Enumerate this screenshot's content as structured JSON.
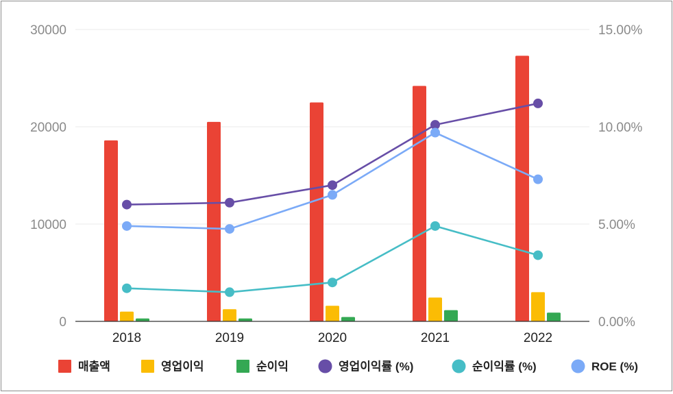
{
  "chart_data": {
    "type": "bar",
    "categories": [
      "2018",
      "2019",
      "2020",
      "2021",
      "2022"
    ],
    "left_axis": {
      "ylim": [
        0,
        30000
      ],
      "ticks": [
        "30000",
        "20000",
        "10000",
        "0"
      ],
      "tick_values": [
        30000,
        20000,
        10000,
        0
      ]
    },
    "right_axis": {
      "ylim": [
        0,
        15
      ],
      "ticks": [
        "15.00%",
        "10.00%",
        "5.00%",
        "0.00%"
      ],
      "tick_values": [
        15,
        10,
        5,
        0
      ]
    },
    "grid": true,
    "legend_position": "bottom",
    "bar_series": [
      {
        "name": "매출액",
        "color": "#ea4335",
        "values": [
          18600,
          20500,
          22500,
          24200,
          27300
        ]
      },
      {
        "name": "영업이익",
        "color": "#fbbc04",
        "values": [
          1000,
          1250,
          1600,
          2450,
          3000
        ]
      },
      {
        "name": "순이익",
        "color": "#34a853",
        "values": [
          300,
          300,
          450,
          1150,
          900
        ]
      }
    ],
    "line_series": [
      {
        "name": "영업이익률 (%)",
        "color": "#674ea7",
        "values": [
          6.0,
          6.1,
          7.0,
          10.1,
          11.2
        ]
      },
      {
        "name": "순이익률 (%)",
        "color": "#46bdc6",
        "values": [
          1.7,
          1.5,
          2.0,
          4.9,
          3.4
        ]
      },
      {
        "name": "ROE (%)",
        "color": "#7baaf7",
        "values": [
          4.9,
          4.75,
          6.5,
          9.7,
          7.3
        ]
      }
    ]
  }
}
